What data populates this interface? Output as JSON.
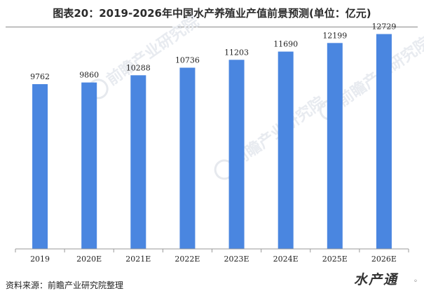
{
  "title": "图表20：2019-2026年中国水产养殖业产值前景预测(单位：亿元)",
  "source": "资料来源：前瞻产业研究院整理",
  "chart_data": {
    "type": "bar",
    "title": "图表20：2019-2026年中国水产养殖业产值前景预测(单位：亿元)",
    "categories": [
      "2019",
      "2020E",
      "2021E",
      "2022E",
      "2023E",
      "2024E",
      "2025E",
      "2026E"
    ],
    "values": [
      9762,
      9860,
      10288,
      10736,
      11203,
      11690,
      12199,
      12729
    ],
    "unit": "亿元",
    "xlabel": "",
    "ylabel": "",
    "ylim": [
      0,
      13500
    ],
    "grid": false,
    "bar_color": "#4a86e0",
    "data_labels": true
  },
  "watermarks": {
    "brand": "前瞻产业研究院",
    "corner": "水产通"
  },
  "colors": {
    "bar": "#4a86e0",
    "axis": "#9a9a9a",
    "text": "#222222"
  }
}
